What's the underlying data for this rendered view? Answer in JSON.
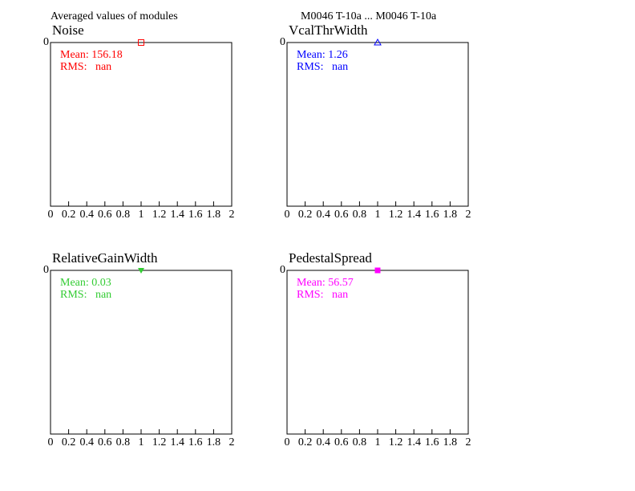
{
  "title": "Averaged values of modules",
  "subtitle": "M0046 T-10a ... M0046 T-10a",
  "chart_data": [
    {
      "type": "scatter",
      "title": "Noise",
      "x": [
        1
      ],
      "values": [
        0
      ],
      "color": "#ff0000",
      "marker": "open-square",
      "mean_label": "Mean: 156.18",
      "rms_label": "RMS:   nan",
      "xlim": [
        0,
        2
      ],
      "xticks": [
        0,
        0.2,
        0.4,
        0.6,
        0.8,
        1,
        1.2,
        1.4,
        1.6,
        1.8,
        2
      ],
      "ylim": [
        -1,
        0
      ],
      "yticks": [
        0
      ]
    },
    {
      "type": "scatter",
      "title": "VcalThrWidth",
      "x": [
        1
      ],
      "values": [
        0
      ],
      "color": "#0000ff",
      "marker": "open-triangle",
      "mean_label": "Mean: 1.26",
      "rms_label": "RMS:   nan",
      "xlim": [
        0,
        2
      ],
      "xticks": [
        0,
        0.2,
        0.4,
        0.6,
        0.8,
        1,
        1.2,
        1.4,
        1.6,
        1.8,
        2
      ],
      "ylim": [
        -1,
        0
      ],
      "yticks": [
        0
      ]
    },
    {
      "type": "scatter",
      "title": "RelativeGainWidth",
      "x": [
        1
      ],
      "values": [
        0
      ],
      "color": "#33cc33",
      "marker": "filled-triangle-down",
      "mean_label": "Mean: 0.03",
      "rms_label": "RMS:   nan",
      "xlim": [
        0,
        2
      ],
      "xticks": [
        0,
        0.2,
        0.4,
        0.6,
        0.8,
        1,
        1.2,
        1.4,
        1.6,
        1.8,
        2
      ],
      "ylim": [
        -1,
        0
      ],
      "yticks": [
        0
      ]
    },
    {
      "type": "scatter",
      "title": "PedestalSpread",
      "x": [
        1
      ],
      "values": [
        0
      ],
      "color": "#ff00ff",
      "marker": "filled-square",
      "mean_label": "Mean: 56.57",
      "rms_label": "RMS:   nan",
      "xlim": [
        0,
        2
      ],
      "xticks": [
        0,
        0.2,
        0.4,
        0.6,
        0.8,
        1,
        1.2,
        1.4,
        1.6,
        1.8,
        2
      ],
      "ylim": [
        -1,
        0
      ],
      "yticks": [
        0
      ]
    }
  ]
}
